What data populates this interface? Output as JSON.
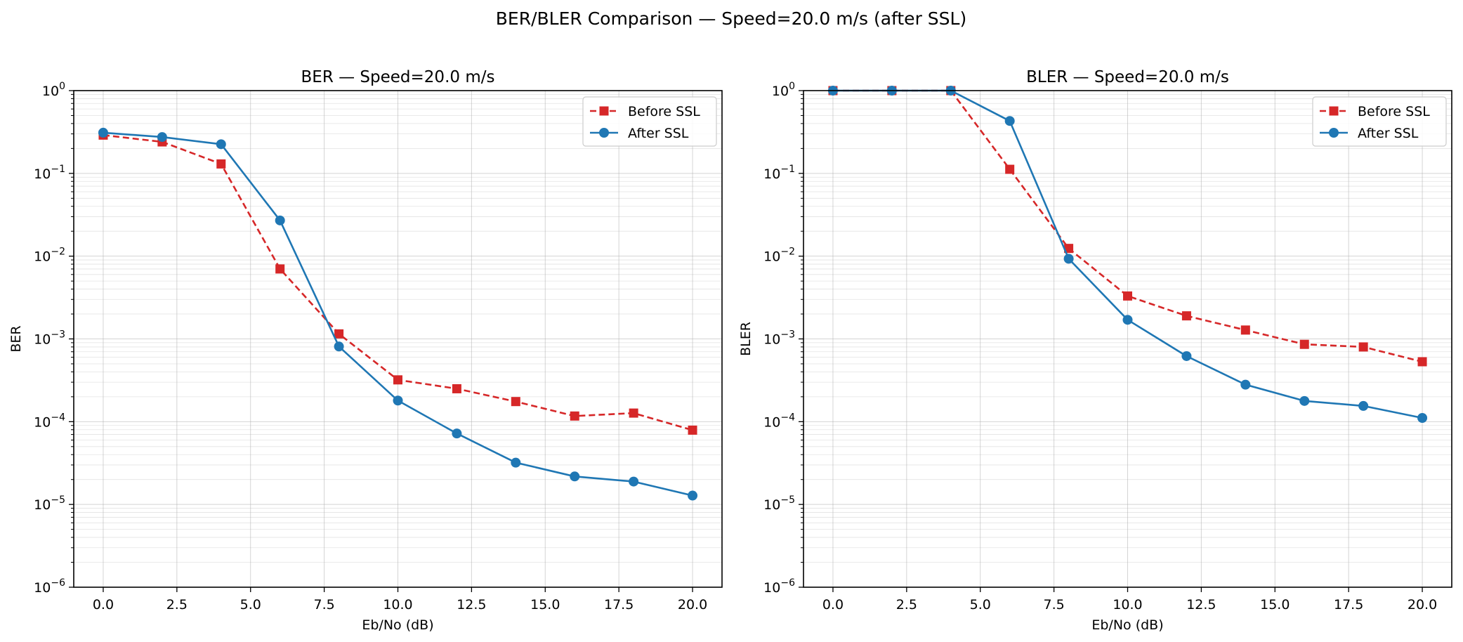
{
  "figure": {
    "suptitle": "BER/BLER Comparison — Speed=20.0 m/s (after SSL)"
  },
  "colors": {
    "before": "#d62728",
    "after": "#1f77b4",
    "grid": "#b0b0b0"
  },
  "chart_data": [
    {
      "type": "line",
      "title": "BER — Speed=20.0 m/s",
      "xlabel": "Eb/No (dB)",
      "ylabel": "BER",
      "yscale": "log",
      "xlim": [
        -1,
        21
      ],
      "ylim": [
        1e-06,
        1
      ],
      "xticks": [
        "0.0",
        "2.5",
        "5.0",
        "7.5",
        "10.0",
        "12.5",
        "15.0",
        "17.5",
        "20.0"
      ],
      "yticks": [
        {
          "base": "10",
          "exp": "0"
        },
        {
          "base": "10",
          "exp": "−1"
        },
        {
          "base": "10",
          "exp": "−2"
        },
        {
          "base": "10",
          "exp": "−3"
        },
        {
          "base": "10",
          "exp": "−4"
        },
        {
          "base": "10",
          "exp": "−5"
        },
        {
          "base": "10",
          "exp": "−6"
        }
      ],
      "grid": true,
      "legend": "top-right",
      "x": [
        0,
        2,
        4,
        6,
        8,
        10,
        12,
        14,
        16,
        18,
        20
      ],
      "series": [
        {
          "name": "Before SSL",
          "values": [
            0.29,
            0.24,
            0.13,
            0.007,
            0.00115,
            0.00032,
            0.00025,
            0.000175,
            0.000117,
            0.000127,
            7.9e-05
          ]
        },
        {
          "name": "After SSL",
          "values": [
            0.31,
            0.275,
            0.225,
            0.027,
            0.00081,
            0.00018,
            7.2e-05,
            3.2e-05,
            2.18e-05,
            1.89e-05,
            1.28e-05
          ]
        }
      ]
    },
    {
      "type": "line",
      "title": "BLER — Speed=20.0 m/s",
      "xlabel": "Eb/No (dB)",
      "ylabel": "BLER",
      "yscale": "log",
      "xlim": [
        -1,
        21
      ],
      "ylim": [
        1e-06,
        1
      ],
      "xticks": [
        "0.0",
        "2.5",
        "5.0",
        "7.5",
        "10.0",
        "12.5",
        "15.0",
        "17.5",
        "20.0"
      ],
      "yticks": [
        {
          "base": "10",
          "exp": "0"
        },
        {
          "base": "10",
          "exp": "−1"
        },
        {
          "base": "10",
          "exp": "−2"
        },
        {
          "base": "10",
          "exp": "−3"
        },
        {
          "base": "10",
          "exp": "−4"
        },
        {
          "base": "10",
          "exp": "−5"
        },
        {
          "base": "10",
          "exp": "−6"
        }
      ],
      "grid": true,
      "legend": "top-right",
      "x": [
        0,
        2,
        4,
        6,
        8,
        10,
        12,
        14,
        16,
        18,
        20
      ],
      "series": [
        {
          "name": "Before SSL",
          "values": [
            1.0,
            1.0,
            1.0,
            0.112,
            0.0124,
            0.0033,
            0.0019,
            0.00128,
            0.00086,
            0.0008,
            0.00053
          ]
        },
        {
          "name": "After SSL",
          "values": [
            1.0,
            1.0,
            1.0,
            0.43,
            0.0093,
            0.0017,
            0.00062,
            0.00028,
            0.000178,
            0.000155,
            0.000111
          ]
        }
      ]
    }
  ]
}
